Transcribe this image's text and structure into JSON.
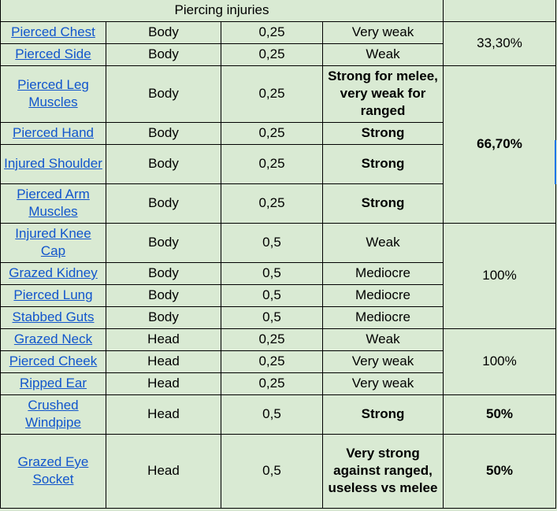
{
  "title": "Piercing injuries",
  "rows": [
    {
      "name": "Pierced Chest",
      "part": "Body",
      "value": "0,25",
      "strength": "Very weak"
    },
    {
      "name": "Pierced Side",
      "part": "Body",
      "value": "0,25",
      "strength": "Weak"
    },
    {
      "name": "Pierced Leg Muscles",
      "part": "Body",
      "value": "0,25",
      "strength": "Strong for melee, very weak for ranged"
    },
    {
      "name": "Pierced Hand",
      "part": "Body",
      "value": "0,25",
      "strength": "Strong"
    },
    {
      "name": "Injured Shoulder",
      "part": "Body",
      "value": "0,25",
      "strength": "Strong"
    },
    {
      "name": "Pierced Arm Muscles",
      "part": "Body",
      "value": "0,25",
      "strength": "Strong"
    },
    {
      "name": "Injured Knee Cap",
      "part": "Body",
      "value": "0,5",
      "strength": "Weak"
    },
    {
      "name": "Grazed Kidney",
      "part": "Body",
      "value": "0,5",
      "strength": "Mediocre"
    },
    {
      "name": "Pierced Lung",
      "part": "Body",
      "value": "0,5",
      "strength": "Mediocre"
    },
    {
      "name": "Stabbed Guts",
      "part": "Body",
      "value": "0,5",
      "strength": "Mediocre"
    },
    {
      "name": "Grazed Neck",
      "part": "Head",
      "value": "0,25",
      "strength": "Weak"
    },
    {
      "name": "Pierced Cheek",
      "part": "Head",
      "value": "0,25",
      "strength": "Very weak"
    },
    {
      "name": "Ripped Ear",
      "part": "Head",
      "value": "0,25",
      "strength": "Very weak"
    },
    {
      "name": "Crushed Windpipe",
      "part": "Head",
      "value": "0,5",
      "strength": "Strong"
    },
    {
      "name": "Grazed Eye Socket",
      "part": "Head",
      "value": "0,5",
      "strength": "Very strong against ranged, useless vs melee"
    }
  ],
  "groups": [
    "33,30%",
    "66,70%",
    "100%",
    "100%",
    "50%",
    "50%"
  ],
  "colors": {
    "background": "#d9ead3",
    "link": "#1155cc",
    "grid": "#000000"
  }
}
